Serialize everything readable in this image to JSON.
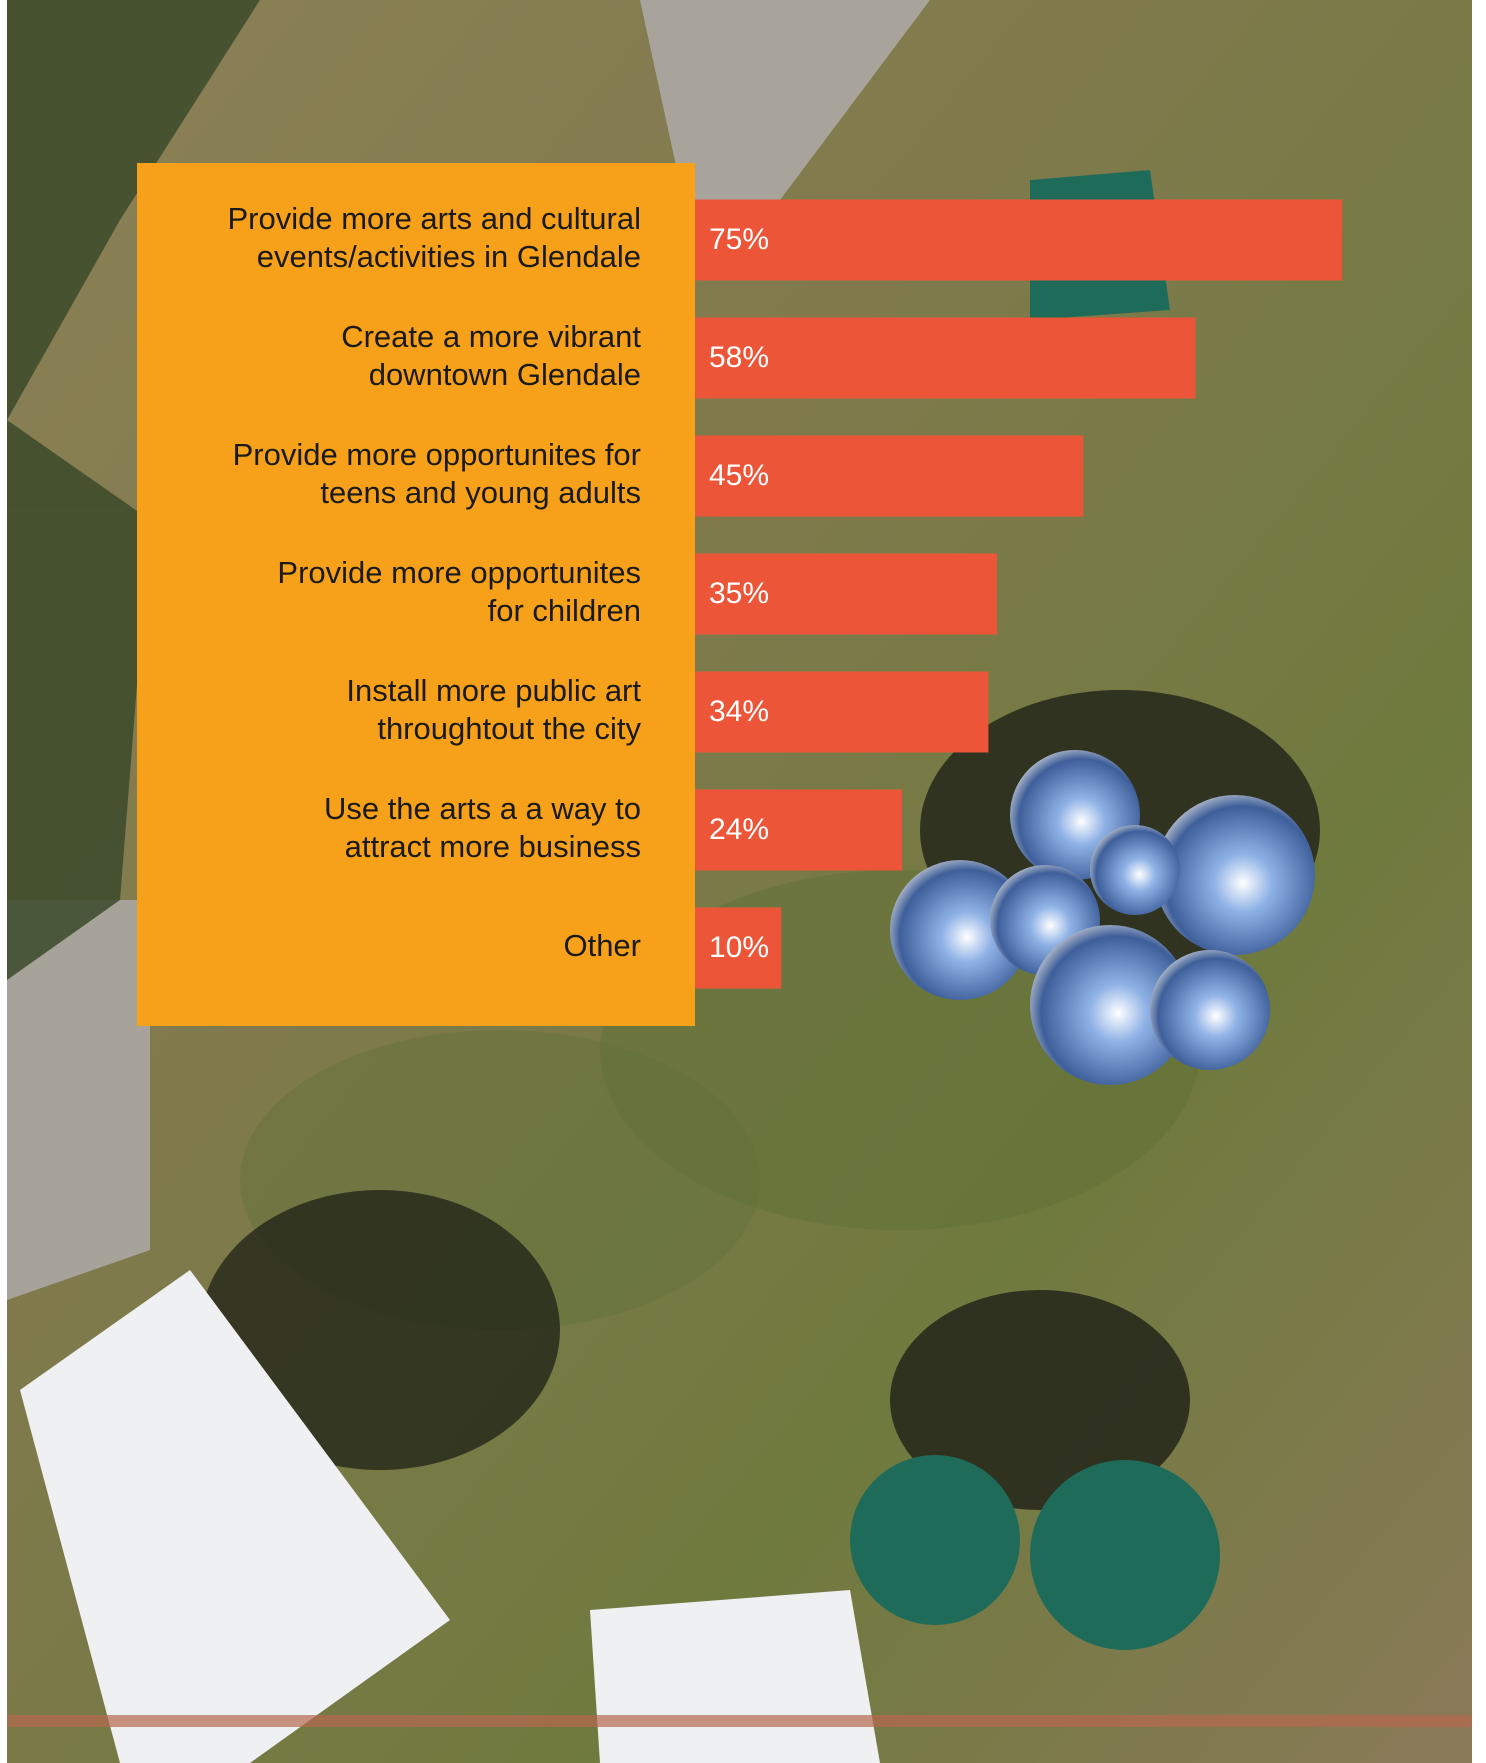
{
  "chart_data": {
    "type": "hbar",
    "categories": [
      [
        "Provide more arts and cultural",
        "events/activities in Glendale"
      ],
      [
        "Create a more vibrant",
        "downtown Glendale"
      ],
      [
        "Provide more opportunites for",
        "teens and young adults"
      ],
      [
        "Provide more opportunites",
        "for children"
      ],
      [
        "Install more public art",
        "throughtout the city"
      ],
      [
        "Use the arts a a way to",
        "attract more business"
      ],
      [
        "Other"
      ]
    ],
    "values": [
      75,
      58,
      45,
      35,
      34,
      24,
      10
    ],
    "value_labels": [
      "75%",
      "58%",
      "45%",
      "35%",
      "34%",
      "24%",
      "10%"
    ],
    "color": "#ec5538",
    "panel_color": "#f7a11a"
  }
}
